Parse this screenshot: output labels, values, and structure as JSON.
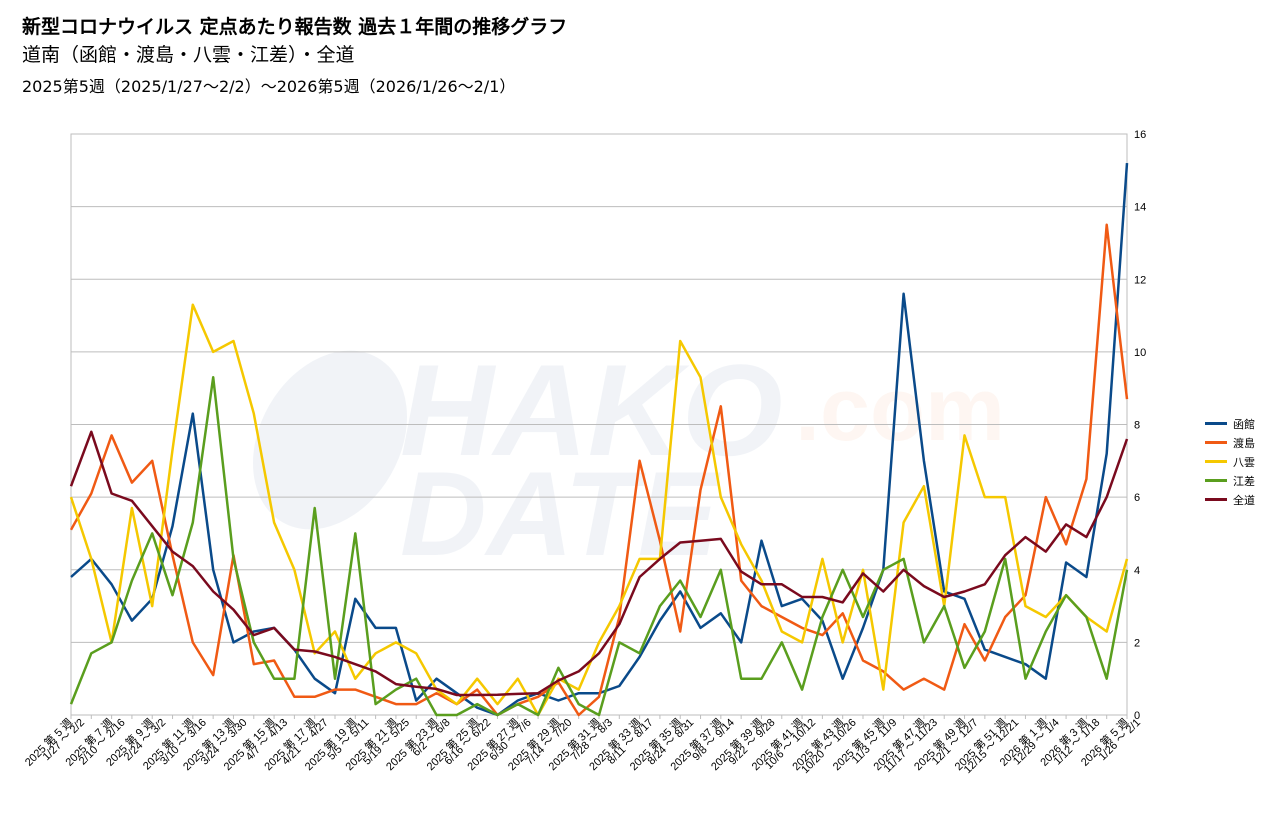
{
  "header": {
    "title": "新型コロナウイルス 定点あたり報告数 過去１年間の推移グラフ",
    "subtitle": "道南（函館・渡島・八雲・江差）・全道",
    "period": "2025第5週（2025/1/27～2/2）～2026第5週（2026/1/26～2/1）"
  },
  "watermark": {
    "logo_top": "HAKO",
    "logo_right": ".com",
    "logo_bottom": "DATE"
  },
  "chart_data": {
    "type": "line",
    "title": "新型コロナウイルス 定点あたり報告数 過去１年間の推移グラフ",
    "xlabel": "",
    "ylabel": "",
    "ylim": [
      0,
      16
    ],
    "yticks": [
      0,
      2,
      4,
      6,
      8,
      10,
      12,
      14,
      16
    ],
    "y_axis_side": "right",
    "grid": true,
    "legend_position": "right",
    "x_tick_labels": [
      [
        "2025 第 5 週",
        "1/27 ～ 2/2"
      ],
      [
        "2025 第 7 週",
        "2/10 ～ 2/16"
      ],
      [
        "2025 第 9 週",
        "2/24 ～ 3/2"
      ],
      [
        "2025 第 11 週",
        "3/10 ～ 3/16"
      ],
      [
        "2025 第 13 週",
        "3/24 ～ 3/30"
      ],
      [
        "2025 第 15 週",
        "4/7 ～ 4/13"
      ],
      [
        "2025 第 17 週",
        "4/21 ～ 4/27"
      ],
      [
        "2025 第 19 週",
        "5/5 ～ 5/11"
      ],
      [
        "2025 第 21 週",
        "5/19 ～ 5/25"
      ],
      [
        "2025 第 23 週",
        "6/2 ～ 6/8"
      ],
      [
        "2025 第 25 週",
        "6/16 ～ 6/22"
      ],
      [
        "2025 第 27 週",
        "6/30 ～ 7/6"
      ],
      [
        "2025 第 29 週",
        "7/14 ～ 7/20"
      ],
      [
        "2025 第 31 週",
        "7/28 ～ 8/3"
      ],
      [
        "2025 第 33 週",
        "8/11 ～ 8/17"
      ],
      [
        "2025 第 35 週",
        "8/24 ～ 8/31"
      ],
      [
        "2025 第 37 週",
        "9/8 ～ 9/14"
      ],
      [
        "2025 第 39 週",
        "9/22 ～ 9/28"
      ],
      [
        "2025 第 41 週",
        "10/6 ～ 10/12"
      ],
      [
        "2025 第 43 週",
        "10/20 ～ 10/26"
      ],
      [
        "2025 第 45 週",
        "11/3 ～ 11/9"
      ],
      [
        "2025 第 47 週",
        "11/17 ～ 11/23"
      ],
      [
        "2025 第 49 週",
        "12/1 ～ 12/7"
      ],
      [
        "2025 第 51 週",
        "12/15 ～ 12/21"
      ],
      [
        "2026 第 1 週",
        "12/29 ～ 1/4"
      ],
      [
        "2026 第 3 週",
        "1/12 ～ 1/18"
      ],
      [
        "2026 第 5 週",
        "1/26 ～ 2/1"
      ]
    ],
    "series": [
      {
        "name": "函館",
        "color": "#0a4a8a",
        "values": [
          3.8,
          4.3,
          3.6,
          2.6,
          3.2,
          5.2,
          8.3,
          4.0,
          2.0,
          2.3,
          2.4,
          1.8,
          1.0,
          0.6,
          3.2,
          2.4,
          2.4,
          0.4,
          1.0,
          0.6,
          0.2,
          0.0,
          0.4,
          0.6,
          0.4,
          0.6,
          0.6,
          0.8,
          1.6,
          2.6,
          3.4,
          2.4,
          2.8,
          2.0,
          4.8,
          3.0,
          3.2,
          2.6,
          1.0,
          2.4,
          4.0,
          11.6,
          7.0,
          3.4,
          3.2,
          1.8,
          1.6,
          1.4,
          1.0,
          4.2,
          3.8,
          7.2,
          15.2
        ]
      },
      {
        "name": "渡島",
        "color": "#f05a14",
        "values": [
          5.1,
          6.1,
          7.7,
          6.4,
          7.0,
          4.4,
          2.0,
          1.1,
          4.4,
          1.4,
          1.5,
          0.5,
          0.5,
          0.7,
          0.7,
          0.5,
          0.3,
          0.3,
          0.6,
          0.3,
          0.7,
          0.0,
          0.3,
          0.5,
          0.9,
          0.0,
          0.5,
          2.7,
          7.0,
          4.8,
          2.3,
          6.2,
          8.5,
          3.7,
          3.0,
          2.7,
          2.4,
          2.2,
          2.8,
          1.5,
          1.2,
          0.7,
          1.0,
          0.7,
          2.5,
          1.5,
          2.7,
          3.3,
          6.0,
          4.7,
          6.5,
          13.5,
          8.7
        ]
      },
      {
        "name": "八雲",
        "color": "#f5c800",
        "values": [
          6.0,
          4.3,
          2.0,
          5.7,
          3.0,
          7.3,
          11.3,
          10.0,
          10.3,
          8.3,
          5.3,
          4.0,
          1.7,
          2.3,
          1.0,
          1.7,
          2.0,
          1.7,
          0.7,
          0.3,
          1.0,
          0.3,
          1.0,
          0.0,
          1.0,
          0.7,
          2.0,
          3.0,
          4.3,
          4.3,
          10.3,
          9.3,
          6.0,
          4.7,
          3.7,
          2.3,
          2.0,
          4.3,
          2.0,
          4.0,
          0.7,
          5.3,
          6.3,
          3.0,
          7.7,
          6.0,
          6.0,
          3.0,
          2.7,
          3.3,
          2.7,
          2.3,
          4.3
        ]
      },
      {
        "name": "江差",
        "color": "#5a9e1e",
        "values": [
          0.3,
          1.7,
          2.0,
          3.7,
          5.0,
          3.3,
          5.3,
          9.3,
          4.3,
          2.0,
          1.0,
          1.0,
          5.7,
          1.0,
          5.0,
          0.3,
          0.7,
          1.0,
          0.0,
          0.0,
          0.3,
          0.0,
          0.3,
          0.0,
          1.3,
          0.3,
          0.0,
          2.0,
          1.7,
          3.0,
          3.7,
          2.7,
          4.0,
          1.0,
          1.0,
          2.0,
          0.7,
          2.7,
          4.0,
          2.7,
          4.0,
          4.3,
          2.0,
          3.0,
          1.3,
          2.3,
          4.3,
          1.0,
          2.3,
          3.3,
          2.7,
          1.0,
          4.0
        ]
      },
      {
        "name": "全道",
        "color": "#7a0a1e",
        "values": [
          6.3,
          7.8,
          6.1,
          5.9,
          5.2,
          4.5,
          4.1,
          3.4,
          2.9,
          2.2,
          2.4,
          1.8,
          1.75,
          1.6,
          1.4,
          1.2,
          0.85,
          0.78,
          0.72,
          0.55,
          0.55,
          0.56,
          0.58,
          0.6,
          0.95,
          1.2,
          1.7,
          2.5,
          3.8,
          4.3,
          4.75,
          4.8,
          4.85,
          3.95,
          3.6,
          3.6,
          3.25,
          3.25,
          3.1,
          3.9,
          3.4,
          4.0,
          3.55,
          3.25,
          3.4,
          3.6,
          4.4,
          4.9,
          4.5,
          5.25,
          4.9,
          6.0,
          7.6
        ]
      }
    ]
  }
}
